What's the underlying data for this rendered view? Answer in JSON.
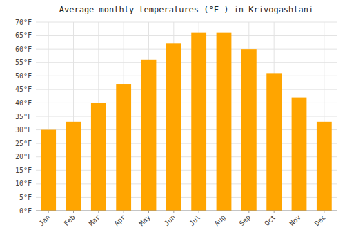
{
  "chart_data": {
    "type": "bar",
    "title": "Average monthly temperatures (°F ) in Krivogashtani",
    "categories": [
      "Jan",
      "Feb",
      "Mar",
      "Apr",
      "May",
      "Jun",
      "Jul",
      "Aug",
      "Sep",
      "Oct",
      "Nov",
      "Dec"
    ],
    "values": [
      30,
      33,
      40,
      47,
      56,
      62,
      66,
      66,
      60,
      51,
      42,
      33
    ],
    "color": "#FFA500",
    "ylim": [
      0,
      70
    ],
    "yticks": [
      {
        "value": 0,
        "label": "0°F"
      },
      {
        "value": 5,
        "label": "5°F"
      },
      {
        "value": 10,
        "label": "10°F"
      },
      {
        "value": 15,
        "label": "15°F"
      },
      {
        "value": 20,
        "label": "20°F"
      },
      {
        "value": 25,
        "label": "25°F"
      },
      {
        "value": 30,
        "label": "30°F"
      },
      {
        "value": 35,
        "label": "35°F"
      },
      {
        "value": 40,
        "label": "40°F"
      },
      {
        "value": 45,
        "label": "45°F"
      },
      {
        "value": 50,
        "label": "50°F"
      },
      {
        "value": 55,
        "label": "55°F"
      },
      {
        "value": 60,
        "label": "60°F"
      },
      {
        "value": 65,
        "label": "65°F"
      },
      {
        "value": 70,
        "label": "70°F"
      }
    ],
    "grid": true
  }
}
